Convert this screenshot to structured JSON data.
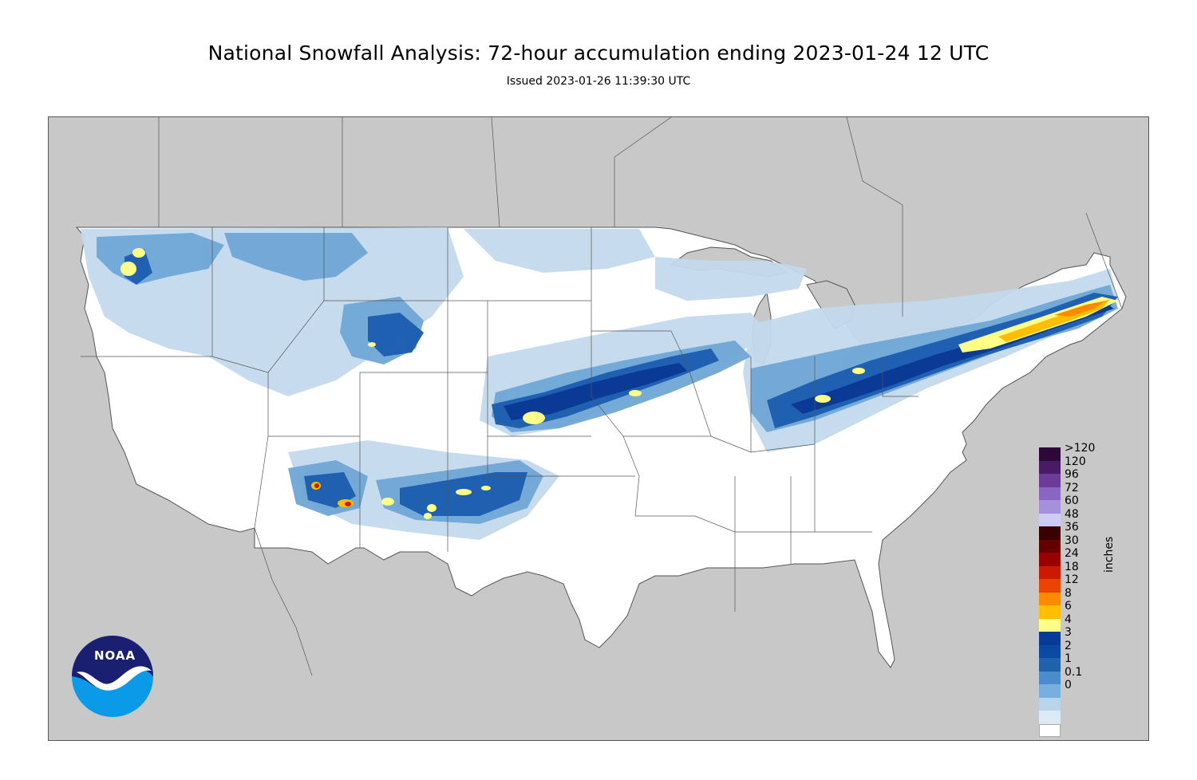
{
  "header": {
    "title": "National Snowfall Analysis: 72-hour accumulation ending 2023-01-24 12 UTC",
    "subtitle": "Issued 2023-01-26 11:39:30 UTC"
  },
  "logo": {
    "text": "NOAA"
  },
  "legend": {
    "units": "inches",
    "levels": [
      {
        "label": ">120",
        "color": "#2e0838"
      },
      {
        "label": "120",
        "color": "#4a1a66"
      },
      {
        "label": "96",
        "color": "#6b3d99"
      },
      {
        "label": "72",
        "color": "#8a66c4"
      },
      {
        "label": "60",
        "color": "#a68fdb"
      },
      {
        "label": "48",
        "color": "#ccccf5"
      },
      {
        "label": "36",
        "color": "#3b0000"
      },
      {
        "label": "30",
        "color": "#660000"
      },
      {
        "label": "24",
        "color": "#990000"
      },
      {
        "label": "18",
        "color": "#cc1a00"
      },
      {
        "label": "12",
        "color": "#ea4400"
      },
      {
        "label": "8",
        "color": "#ff8a00"
      },
      {
        "label": "6",
        "color": "#ffbf00"
      },
      {
        "label": "4",
        "color": "#ffff88"
      },
      {
        "label": "3",
        "color": "#083a9a"
      },
      {
        "label": "2",
        "color": "#0a4aa5"
      },
      {
        "label": "1",
        "color": "#2162ad"
      },
      {
        "label": "0.1",
        "color": "#4b8ccc"
      },
      {
        "label": "0",
        "color": "#77b0de"
      }
    ],
    "base_colors": [
      "#b8d5ea",
      "#dde9f4",
      "#ffffff"
    ]
  },
  "colors": {
    "land_outside": "#c8c8c8",
    "water": "#c8c8c8",
    "conus_base": "#ffffff",
    "light_snow": "#c3daed",
    "mid_snow": "#6fa6d6",
    "heavy_snow": "#1f5fb0",
    "very_heavy": "#0b3a96",
    "yellow": "#ffff88",
    "orange": "#ffbf00",
    "deep_orange": "#ff8a00",
    "red": "#cc1a00"
  }
}
